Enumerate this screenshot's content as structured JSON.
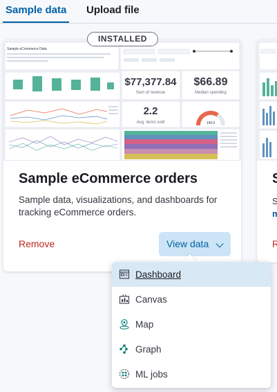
{
  "tabs": [
    {
      "label": "Sample data"
    },
    {
      "label": "Upload file"
    }
  ],
  "card": {
    "badge": "INSTALLED",
    "title": "Sample eCommerce orders",
    "description": "Sample data, visualizations, and dashboards for tracking eCommerce orders.",
    "remove_label": "Remove",
    "view_label": "View data",
    "preview": {
      "heading": "Sample eCommerce Data",
      "revenue": "$77,377.84",
      "revenue_label": "Sum of revenue",
      "median": "$66.89",
      "median_label": "Median spending",
      "avg_items": "2.2",
      "avg_items_label": "Avg. items sold",
      "gauge_value": "149.0"
    }
  },
  "card2": {
    "title": "S",
    "line1": "S",
    "line2": "m",
    "remove": "R"
  },
  "menu": {
    "items": [
      {
        "label": "Dashboard",
        "icon": "dashboard-icon"
      },
      {
        "label": "Canvas",
        "icon": "canvas-icon"
      },
      {
        "label": "Map",
        "icon": "map-icon"
      },
      {
        "label": "Graph",
        "icon": "graph-icon"
      },
      {
        "label": "ML jobs",
        "icon": "ml-jobs-icon"
      }
    ]
  },
  "colors": {
    "accent": "#0061a6",
    "danger": "#bd271e",
    "button_bg": "#cce4f5",
    "menu_active_bg": "#d9e8f5",
    "chart_green": "#54b399",
    "gauge_red": "#e7664c"
  }
}
